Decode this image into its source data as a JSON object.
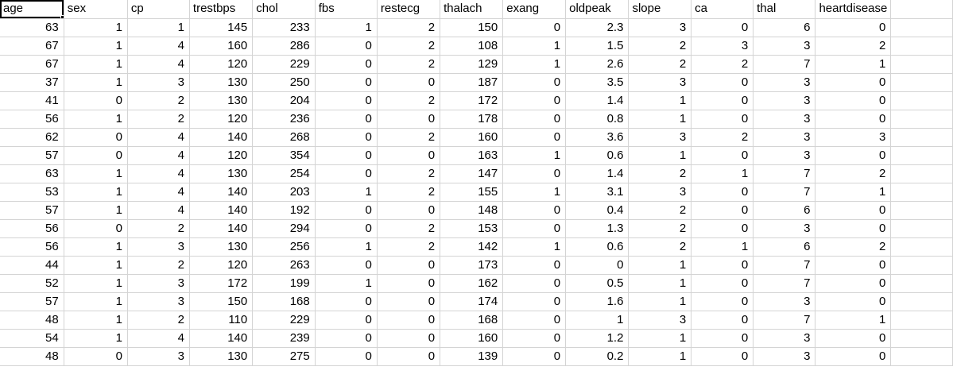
{
  "sheet": {
    "headers": [
      "age",
      "sex",
      "cp",
      "trestbps",
      "chol",
      "fbs",
      "restecg",
      "thalach",
      "exang",
      "oldpeak",
      "slope",
      "ca",
      "thal",
      "heartdisease"
    ],
    "rows": [
      [
        "63",
        "1",
        "1",
        "145",
        "233",
        "1",
        "2",
        "150",
        "0",
        "2.3",
        "3",
        "0",
        "6",
        "0"
      ],
      [
        "67",
        "1",
        "4",
        "160",
        "286",
        "0",
        "2",
        "108",
        "1",
        "1.5",
        "2",
        "3",
        "3",
        "2"
      ],
      [
        "67",
        "1",
        "4",
        "120",
        "229",
        "0",
        "2",
        "129",
        "1",
        "2.6",
        "2",
        "2",
        "7",
        "1"
      ],
      [
        "37",
        "1",
        "3",
        "130",
        "250",
        "0",
        "0",
        "187",
        "0",
        "3.5",
        "3",
        "0",
        "3",
        "0"
      ],
      [
        "41",
        "0",
        "2",
        "130",
        "204",
        "0",
        "2",
        "172",
        "0",
        "1.4",
        "1",
        "0",
        "3",
        "0"
      ],
      [
        "56",
        "1",
        "2",
        "120",
        "236",
        "0",
        "0",
        "178",
        "0",
        "0.8",
        "1",
        "0",
        "3",
        "0"
      ],
      [
        "62",
        "0",
        "4",
        "140",
        "268",
        "0",
        "2",
        "160",
        "0",
        "3.6",
        "3",
        "2",
        "3",
        "3"
      ],
      [
        "57",
        "0",
        "4",
        "120",
        "354",
        "0",
        "0",
        "163",
        "1",
        "0.6",
        "1",
        "0",
        "3",
        "0"
      ],
      [
        "63",
        "1",
        "4",
        "130",
        "254",
        "0",
        "2",
        "147",
        "0",
        "1.4",
        "2",
        "1",
        "7",
        "2"
      ],
      [
        "53",
        "1",
        "4",
        "140",
        "203",
        "1",
        "2",
        "155",
        "1",
        "3.1",
        "3",
        "0",
        "7",
        "1"
      ],
      [
        "57",
        "1",
        "4",
        "140",
        "192",
        "0",
        "0",
        "148",
        "0",
        "0.4",
        "2",
        "0",
        "6",
        "0"
      ],
      [
        "56",
        "0",
        "2",
        "140",
        "294",
        "0",
        "2",
        "153",
        "0",
        "1.3",
        "2",
        "0",
        "3",
        "0"
      ],
      [
        "56",
        "1",
        "3",
        "130",
        "256",
        "1",
        "2",
        "142",
        "1",
        "0.6",
        "2",
        "1",
        "6",
        "2"
      ],
      [
        "44",
        "1",
        "2",
        "120",
        "263",
        "0",
        "0",
        "173",
        "0",
        "0",
        "1",
        "0",
        "7",
        "0"
      ],
      [
        "52",
        "1",
        "3",
        "172",
        "199",
        "1",
        "0",
        "162",
        "0",
        "0.5",
        "1",
        "0",
        "7",
        "0"
      ],
      [
        "57",
        "1",
        "3",
        "150",
        "168",
        "0",
        "0",
        "174",
        "0",
        "1.6",
        "1",
        "0",
        "3",
        "0"
      ],
      [
        "48",
        "1",
        "2",
        "110",
        "229",
        "0",
        "0",
        "168",
        "0",
        "1",
        "3",
        "0",
        "7",
        "1"
      ],
      [
        "54",
        "1",
        "4",
        "140",
        "239",
        "0",
        "0",
        "160",
        "0",
        "1.2",
        "1",
        "0",
        "3",
        "0"
      ],
      [
        "48",
        "0",
        "3",
        "130",
        "275",
        "0",
        "0",
        "139",
        "0",
        "0.2",
        "1",
        "0",
        "3",
        "0"
      ]
    ]
  }
}
